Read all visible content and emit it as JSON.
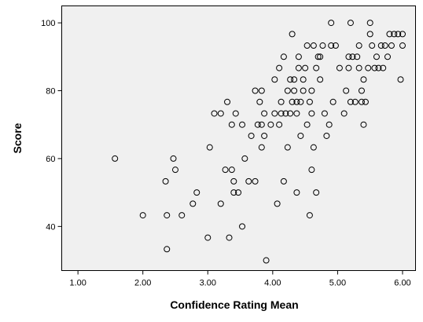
{
  "chart_data": {
    "type": "scatter",
    "xlabel": "Confidence Rating Mean",
    "ylabel": "Score",
    "xlim": [
      0.75,
      6.2
    ],
    "ylim": [
      27,
      105
    ],
    "xticks": [
      "1.00",
      "2.00",
      "3.00",
      "4.00",
      "5.00",
      "6.00"
    ],
    "xtick_values": [
      1,
      2,
      3,
      4,
      5,
      6
    ],
    "yticks": [
      "40",
      "60",
      "80",
      "100"
    ],
    "ytick_values": [
      40,
      60,
      80,
      100
    ],
    "grid": false,
    "marker": "open-circle",
    "points": [
      [
        1.57,
        60
      ],
      [
        2.0,
        43.3
      ],
      [
        2.35,
        53.3
      ],
      [
        2.37,
        43.3
      ],
      [
        2.37,
        33.3
      ],
      [
        2.47,
        60
      ],
      [
        2.5,
        56.7
      ],
      [
        2.6,
        43.3
      ],
      [
        2.77,
        46.7
      ],
      [
        2.83,
        50
      ],
      [
        3.0,
        36.7
      ],
      [
        3.03,
        63.3
      ],
      [
        3.1,
        73.3
      ],
      [
        3.2,
        73.3
      ],
      [
        3.2,
        46.7
      ],
      [
        3.27,
        56.7
      ],
      [
        3.3,
        76.7
      ],
      [
        3.33,
        36.7
      ],
      [
        3.37,
        56.7
      ],
      [
        3.37,
        70
      ],
      [
        3.4,
        53.3
      ],
      [
        3.4,
        50
      ],
      [
        3.43,
        73.3
      ],
      [
        3.47,
        50
      ],
      [
        3.53,
        40
      ],
      [
        3.53,
        70
      ],
      [
        3.57,
        60
      ],
      [
        3.63,
        53.3
      ],
      [
        3.67,
        66.7
      ],
      [
        3.73,
        80
      ],
      [
        3.73,
        53.3
      ],
      [
        3.77,
        70
      ],
      [
        3.8,
        76.7
      ],
      [
        3.83,
        80
      ],
      [
        3.83,
        63.3
      ],
      [
        3.83,
        70
      ],
      [
        3.87,
        66.7
      ],
      [
        3.87,
        73.3
      ],
      [
        3.9,
        30
      ],
      [
        3.97,
        70
      ],
      [
        4.03,
        73.3
      ],
      [
        4.03,
        83.3
      ],
      [
        4.07,
        46.7
      ],
      [
        4.1,
        86.7
      ],
      [
        4.1,
        70
      ],
      [
        4.13,
        76.7
      ],
      [
        4.13,
        73.3
      ],
      [
        4.17,
        53.3
      ],
      [
        4.17,
        90
      ],
      [
        4.2,
        73.3
      ],
      [
        4.23,
        80
      ],
      [
        4.23,
        63.3
      ],
      [
        4.27,
        73.3
      ],
      [
        4.27,
        83.3
      ],
      [
        4.3,
        96.7
      ],
      [
        4.3,
        76.7
      ],
      [
        4.33,
        80
      ],
      [
        4.33,
        83.3
      ],
      [
        4.37,
        76.7
      ],
      [
        4.37,
        50
      ],
      [
        4.37,
        73.3
      ],
      [
        4.4,
        90
      ],
      [
        4.4,
        86.7
      ],
      [
        4.43,
        76.7
      ],
      [
        4.43,
        66.7
      ],
      [
        4.47,
        83.3
      ],
      [
        4.47,
        80
      ],
      [
        4.5,
        86.7
      ],
      [
        4.53,
        93.3
      ],
      [
        4.53,
        70
      ],
      [
        4.57,
        76.7
      ],
      [
        4.57,
        43.3
      ],
      [
        4.6,
        56.7
      ],
      [
        4.6,
        73.3
      ],
      [
        4.6,
        80
      ],
      [
        4.63,
        93.3
      ],
      [
        4.63,
        63.3
      ],
      [
        4.67,
        50
      ],
      [
        4.67,
        86.7
      ],
      [
        4.7,
        90
      ],
      [
        4.73,
        83.3
      ],
      [
        4.73,
        90
      ],
      [
        4.77,
        93.3
      ],
      [
        4.8,
        73.3
      ],
      [
        4.83,
        66.7
      ],
      [
        4.87,
        70
      ],
      [
        4.9,
        100
      ],
      [
        4.9,
        93.3
      ],
      [
        4.93,
        76.7
      ],
      [
        4.97,
        93.3
      ],
      [
        5.03,
        86.7
      ],
      [
        5.1,
        73.3
      ],
      [
        5.13,
        80
      ],
      [
        5.17,
        90
      ],
      [
        5.17,
        86.7
      ],
      [
        5.2,
        100
      ],
      [
        5.2,
        76.7
      ],
      [
        5.23,
        90
      ],
      [
        5.27,
        76.7
      ],
      [
        5.3,
        90
      ],
      [
        5.33,
        93.3
      ],
      [
        5.33,
        86.7
      ],
      [
        5.37,
        80
      ],
      [
        5.37,
        76.7
      ],
      [
        5.4,
        70
      ],
      [
        5.4,
        83.3
      ],
      [
        5.43,
        76.7
      ],
      [
        5.47,
        86.7
      ],
      [
        5.5,
        100
      ],
      [
        5.5,
        96.7
      ],
      [
        5.53,
        93.3
      ],
      [
        5.57,
        86.7
      ],
      [
        5.6,
        90
      ],
      [
        5.63,
        86.7
      ],
      [
        5.67,
        93.3
      ],
      [
        5.7,
        86.7
      ],
      [
        5.73,
        93.3
      ],
      [
        5.77,
        90
      ],
      [
        5.8,
        96.7
      ],
      [
        5.83,
        93.3
      ],
      [
        5.87,
        96.7
      ],
      [
        5.93,
        96.7
      ],
      [
        5.97,
        83.3
      ],
      [
        6.0,
        96.7
      ],
      [
        6.0,
        93.3
      ]
    ]
  }
}
